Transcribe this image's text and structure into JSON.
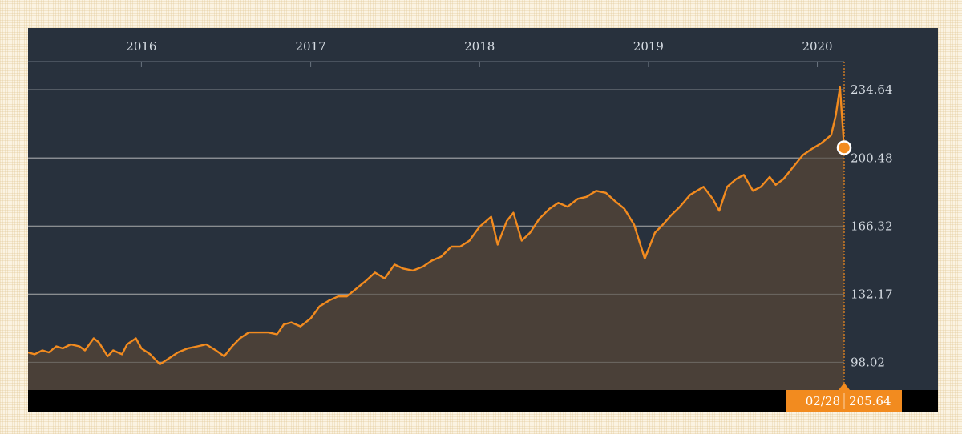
{
  "chart_data": {
    "type": "area",
    "x_ticks": [
      "2016",
      "2017",
      "2018",
      "2019",
      "2020"
    ],
    "y_ticks": [
      98.02,
      132.17,
      166.32,
      200.48,
      234.64
    ],
    "y_tick_labels": [
      "98.02",
      "132.17",
      "166.32",
      "200.48",
      "234.64"
    ],
    "ylim": [
      84.1,
      248.8
    ],
    "grid": true,
    "current": {
      "date": "02/28",
      "value": 205.64,
      "value_label": "205.64"
    },
    "series": [
      {
        "x": [
          "2015-05-01",
          "2015-05-15",
          "2015-06-01",
          "2015-06-15",
          "2015-07-01",
          "2015-07-15",
          "2015-08-01",
          "2015-08-20",
          "2015-09-01",
          "2015-09-20",
          "2015-10-01",
          "2015-10-20",
          "2015-11-01",
          "2015-11-20",
          "2015-12-01",
          "2015-12-20",
          "2016-01-01",
          "2016-01-20",
          "2016-02-10",
          "2016-03-01",
          "2016-03-20",
          "2016-04-10",
          "2016-05-01",
          "2016-05-20",
          "2016-06-10",
          "2016-06-28",
          "2016-07-15",
          "2016-08-01",
          "2016-08-20",
          "2016-09-10",
          "2016-10-01",
          "2016-10-20",
          "2016-11-04",
          "2016-11-20",
          "2016-12-10",
          "2017-01-01",
          "2017-01-20",
          "2017-02-10",
          "2017-03-01",
          "2017-03-20",
          "2017-04-10",
          "2017-05-01",
          "2017-05-20",
          "2017-06-10",
          "2017-07-01",
          "2017-07-20",
          "2017-08-10",
          "2017-09-01",
          "2017-09-20",
          "2017-10-10",
          "2017-11-01",
          "2017-11-20",
          "2017-12-10",
          "2018-01-01",
          "2018-01-26",
          "2018-02-09",
          "2018-03-01",
          "2018-03-15",
          "2018-04-02",
          "2018-04-20",
          "2018-05-10",
          "2018-06-01",
          "2018-06-20",
          "2018-07-10",
          "2018-08-01",
          "2018-08-20",
          "2018-09-10",
          "2018-10-01",
          "2018-10-20",
          "2018-11-10",
          "2018-12-01",
          "2018-12-24",
          "2019-01-15",
          "2019-02-01",
          "2019-02-20",
          "2019-03-10",
          "2019-04-01",
          "2019-04-30",
          "2019-05-20",
          "2019-06-03",
          "2019-06-20",
          "2019-07-10",
          "2019-07-26",
          "2019-08-15",
          "2019-09-01",
          "2019-09-20",
          "2019-10-03",
          "2019-10-20",
          "2019-11-10",
          "2019-12-01",
          "2019-12-20",
          "2020-01-10",
          "2020-01-31",
          "2020-02-10",
          "2020-02-19",
          "2020-02-28"
        ],
        "y": [
          103,
          102,
          104,
          103,
          106,
          105,
          107,
          106,
          104,
          110,
          108,
          101,
          104,
          102,
          107,
          110,
          105,
          102,
          97,
          100,
          103,
          105,
          106,
          107,
          104,
          101,
          106,
          110,
          113,
          113,
          113,
          112,
          117,
          118,
          116,
          120,
          126,
          129,
          131,
          131,
          135,
          139,
          143,
          140,
          147,
          145,
          144,
          146,
          149,
          151,
          156,
          156,
          159,
          166,
          171,
          157,
          169,
          173,
          159,
          163,
          170,
          175,
          178,
          176,
          180,
          181,
          184,
          183,
          179,
          175,
          167,
          150,
          163,
          167,
          172,
          176,
          182,
          186,
          180,
          174,
          186,
          190,
          192,
          184,
          186,
          191,
          187,
          190,
          196,
          202,
          205,
          208,
          212,
          222,
          236,
          205.64
        ]
      }
    ]
  }
}
